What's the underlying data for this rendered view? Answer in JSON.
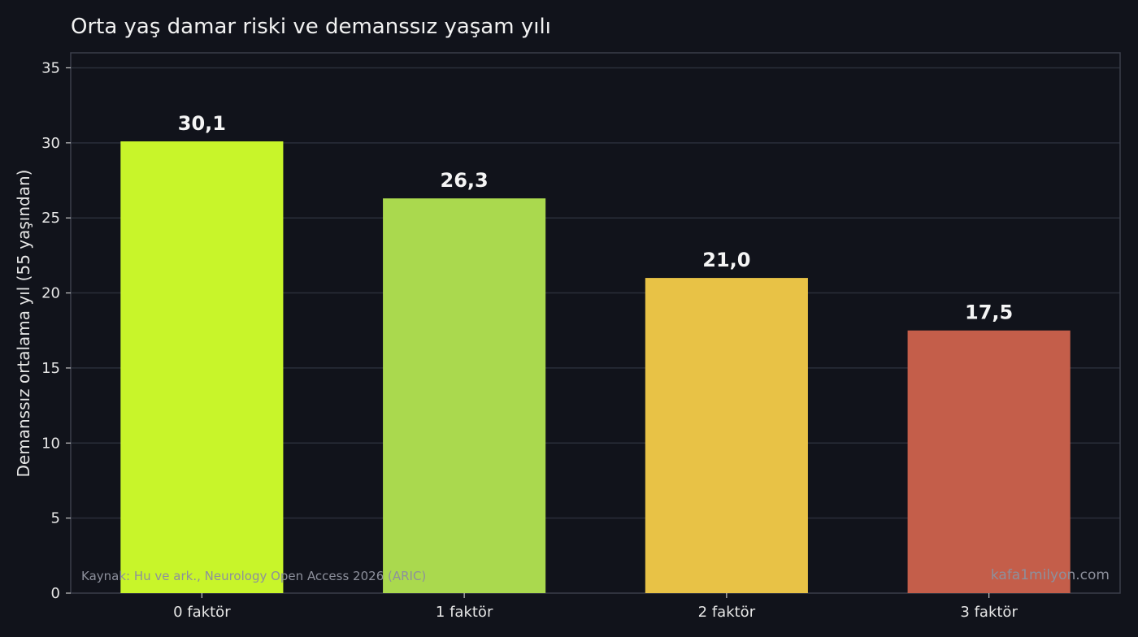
{
  "chart_data": {
    "type": "bar",
    "title": "Orta yaş damar riski ve demanssız yaşam yılı",
    "xlabel": "",
    "ylabel": "Demanssız ortalama yıl (55 yaşından)",
    "categories": [
      "0 faktör",
      "1 faktör",
      "2 faktör",
      "3 faktör"
    ],
    "values": [
      30.1,
      26.3,
      21.0,
      17.5
    ],
    "value_labels": [
      "30,1",
      "26,3",
      "21,0",
      "17,5"
    ],
    "bar_colors": [
      "#c8f52a",
      "#aad94e",
      "#e8c246",
      "#c45e4a"
    ],
    "ylim": [
      0,
      36
    ],
    "yticks": [
      0,
      5,
      10,
      15,
      20,
      25,
      30,
      35
    ],
    "grid": true,
    "source_note": "Kaynak: Hu ve ark., Neurology Open Access 2026 (ARIC)",
    "watermark": "kafa1milyon.com"
  },
  "colors": {
    "background": "#11131b",
    "grid": "#2a2e3a",
    "axis": "#3a3e4b",
    "text": "#e6e6e6"
  }
}
